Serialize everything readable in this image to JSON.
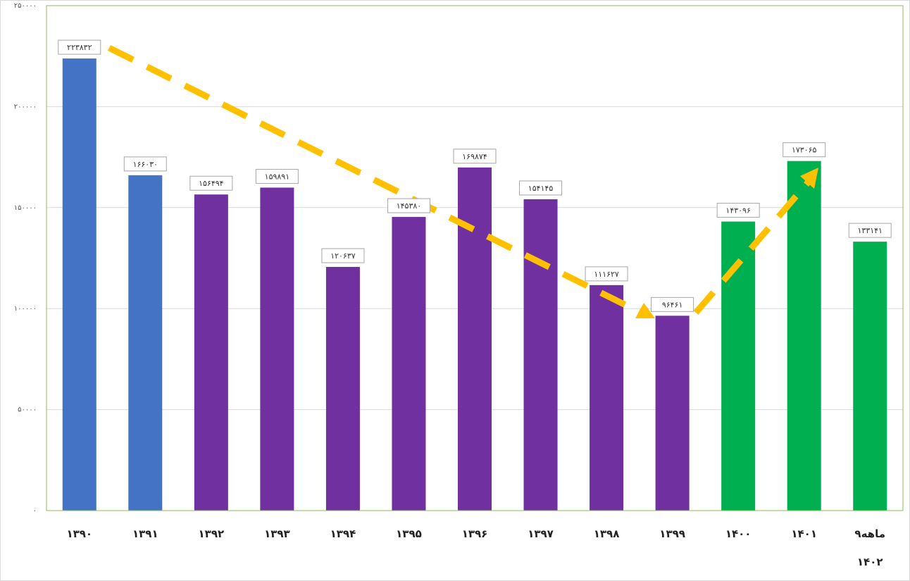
{
  "chart_data": {
    "type": "bar",
    "categories": [
      "۱۳۹۰",
      "۱۳۹۱",
      "۱۳۹۲",
      "۱۳۹۳",
      "۱۳۹۴",
      "۱۳۹۵",
      "۱۳۹۶",
      "۱۳۹۷",
      "۱۳۹۸",
      "۱۳۹۹",
      "۱۴۰۰",
      "۱۴۰۱",
      "۹ماهه ۱۴۰۲"
    ],
    "values": [
      223832,
      166030,
      156494,
      159891,
      120637,
      145380,
      169874,
      154145,
      111627,
      96461,
      143096,
      173065,
      133141
    ],
    "value_labels": [
      "۲۲۳۸۳۲",
      "۱۶۶۰۳۰",
      "۱۵۶۴۹۴",
      "۱۵۹۸۹۱",
      "۱۲۰۶۳۷",
      "۱۴۵۳۸۰",
      "۱۶۹۸۷۴",
      "۱۵۴۱۴۵",
      "۱۱۱۶۲۷",
      "۹۶۴۶۱",
      "۱۴۳۰۹۶",
      "۱۷۳۰۶۵",
      "۱۳۳۱۴۱"
    ],
    "colors": [
      "#4472c4",
      "#4472c4",
      "#7030a0",
      "#7030a0",
      "#7030a0",
      "#7030a0",
      "#7030a0",
      "#7030a0",
      "#7030a0",
      "#7030a0",
      "#00b050",
      "#00b050",
      "#00b050"
    ],
    "ylim": [
      0,
      250000
    ],
    "yticks": [
      {
        "value": 0,
        "label": "۰"
      },
      {
        "value": 50000,
        "label": "۵۰۰۰۰"
      },
      {
        "value": 100000,
        "label": "۱۰۰۰۰۰"
      },
      {
        "value": 150000,
        "label": "۱۵۰۰۰۰"
      },
      {
        "value": 200000,
        "label": "۲۰۰۰۰۰"
      },
      {
        "value": 250000,
        "label": "۲۵۰۰۰۰"
      }
    ],
    "grid": true
  }
}
